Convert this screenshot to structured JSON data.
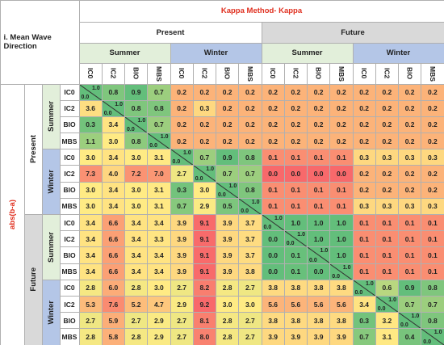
{
  "title": "Kappa Method- Kappa",
  "subtitle": "i. Mean Wave Direction",
  "row_axis_label": "abs(b-a)",
  "columns": {
    "periods": [
      "Present",
      "Future"
    ],
    "seasons": [
      "Summer",
      "Winter",
      "Summer",
      "Winter"
    ],
    "models": [
      "IC0",
      "IC2",
      "BIO",
      "MBS",
      "IC0",
      "IC2",
      "BIO",
      "MBS",
      "IC0",
      "IC2",
      "BIO",
      "MBS",
      "IC0",
      "IC2",
      "BIO",
      "MBS"
    ]
  },
  "row_headers": {
    "periods": [
      "Present",
      "Future"
    ],
    "seasons": [
      "Summer",
      "Winter",
      "Summer",
      "Winter"
    ],
    "models": [
      "IC0",
      "IC2",
      "BIO",
      "MBS",
      "IC0",
      "IC2",
      "BIO",
      "MBS",
      "IC0",
      "IC2",
      "BIO",
      "MBS",
      "IC0",
      "IC2",
      "BIO",
      "MBS"
    ]
  },
  "rows": [
    [
      {
        "upper": "1.0",
        "lower": "0.0"
      },
      "0.8",
      "0.9",
      "0.7",
      "0.2",
      "0.2",
      "0.2",
      "0.2",
      "0.2",
      "0.2",
      "0.2",
      "0.2",
      "0.2",
      "0.2",
      "0.2",
      "0.2"
    ],
    [
      "3.6",
      {
        "upper": "1.0",
        "lower": "0.0"
      },
      "0.8",
      "0.8",
      "0.2",
      "0.3",
      "0.2",
      "0.2",
      "0.2",
      "0.2",
      "0.2",
      "0.2",
      "0.2",
      "0.2",
      "0.2",
      "0.2"
    ],
    [
      "0.3",
      "3.4",
      {
        "upper": "1.0",
        "lower": "0.0"
      },
      "0.7",
      "0.2",
      "0.2",
      "0.2",
      "0.2",
      "0.2",
      "0.2",
      "0.2",
      "0.2",
      "0.2",
      "0.2",
      "0.2",
      "0.2"
    ],
    [
      "1.1",
      "3.0",
      "0.8",
      {
        "upper": "1.0",
        "lower": "0.0"
      },
      "0.2",
      "0.2",
      "0.2",
      "0.2",
      "0.2",
      "0.2",
      "0.2",
      "0.2",
      "0.2",
      "0.2",
      "0.2",
      "0.2"
    ],
    [
      "3.0",
      "3.4",
      "3.0",
      "3.1",
      {
        "upper": "1.0",
        "lower": "0.0"
      },
      "0.7",
      "0.9",
      "0.8",
      "0.1",
      "0.1",
      "0.1",
      "0.1",
      "0.3",
      "0.3",
      "0.3",
      "0.3"
    ],
    [
      "7.3",
      "4.0",
      "7.2",
      "7.0",
      "2.7",
      {
        "upper": "1.0",
        "lower": "0.0"
      },
      "0.7",
      "0.7",
      "0.0",
      "0.0",
      "0.0",
      "0.0",
      "0.2",
      "0.2",
      "0.2",
      "0.2"
    ],
    [
      "3.0",
      "3.4",
      "3.0",
      "3.1",
      "0.3",
      "3.0",
      {
        "upper": "1.0",
        "lower": "0.0"
      },
      "0.8",
      "0.1",
      "0.1",
      "0.1",
      "0.1",
      "0.2",
      "0.2",
      "0.2",
      "0.2"
    ],
    [
      "3.0",
      "3.4",
      "3.0",
      "3.1",
      "0.7",
      "2.9",
      "0.5",
      {
        "upper": "1.0",
        "lower": "0.0"
      },
      "0.1",
      "0.1",
      "0.1",
      "0.1",
      "0.3",
      "0.3",
      "0.3",
      "0.3"
    ],
    [
      "3.4",
      "6.6",
      "3.4",
      "3.4",
      "3.9",
      "9.1",
      "3.9",
      "3.7",
      {
        "upper": "1.0",
        "lower": "0.0"
      },
      "1.0",
      "1.0",
      "1.0",
      "0.1",
      "0.1",
      "0.1",
      "0.1"
    ],
    [
      "3.4",
      "6.6",
      "3.4",
      "3.3",
      "3.9",
      "9.1",
      "3.9",
      "3.7",
      "0.0",
      {
        "upper": "1.0",
        "lower": "0.0"
      },
      "1.0",
      "1.0",
      "0.1",
      "0.1",
      "0.1",
      "0.1"
    ],
    [
      "3.4",
      "6.6",
      "3.4",
      "3.4",
      "3.9",
      "9.1",
      "3.9",
      "3.7",
      "0.0",
      "0.1",
      {
        "upper": "1.0",
        "lower": "0.0"
      },
      "1.0",
      "0.1",
      "0.1",
      "0.1",
      "0.1"
    ],
    [
      "3.4",
      "6.6",
      "3.4",
      "3.4",
      "3.9",
      "9.1",
      "3.9",
      "3.8",
      "0.0",
      "0.1",
      "0.0",
      {
        "upper": "1.0",
        "lower": "0.0"
      },
      "0.1",
      "0.1",
      "0.1",
      "0.1"
    ],
    [
      "2.8",
      "6.0",
      "2.8",
      "3.0",
      "2.7",
      "8.2",
      "2.8",
      "2.7",
      "3.8",
      "3.8",
      "3.8",
      "3.8",
      {
        "upper": "1.0",
        "lower": "0.0"
      },
      "0.6",
      "0.9",
      "0.8"
    ],
    [
      "5.3",
      "7.6",
      "5.2",
      "4.7",
      "2.9",
      "9.2",
      "3.0",
      "3.0",
      "5.6",
      "5.6",
      "5.6",
      "5.6",
      "3.4",
      {
        "upper": "1.0",
        "lower": "0.0"
      },
      "0.7",
      "0.7"
    ],
    [
      "2.7",
      "5.9",
      "2.7",
      "2.9",
      "2.7",
      "8.1",
      "2.8",
      "2.7",
      "3.8",
      "3.8",
      "3.8",
      "3.8",
      "0.3",
      "3.2",
      {
        "upper": "1.0",
        "lower": "0.0"
      },
      "0.8"
    ],
    [
      "2.8",
      "5.8",
      "2.8",
      "2.9",
      "2.7",
      "8.0",
      "2.8",
      "2.7",
      "3.9",
      "3.9",
      "3.9",
      "3.9",
      "0.7",
      "3.1",
      "0.4",
      {
        "upper": "1.0",
        "lower": "0.0"
      }
    ]
  ]
}
